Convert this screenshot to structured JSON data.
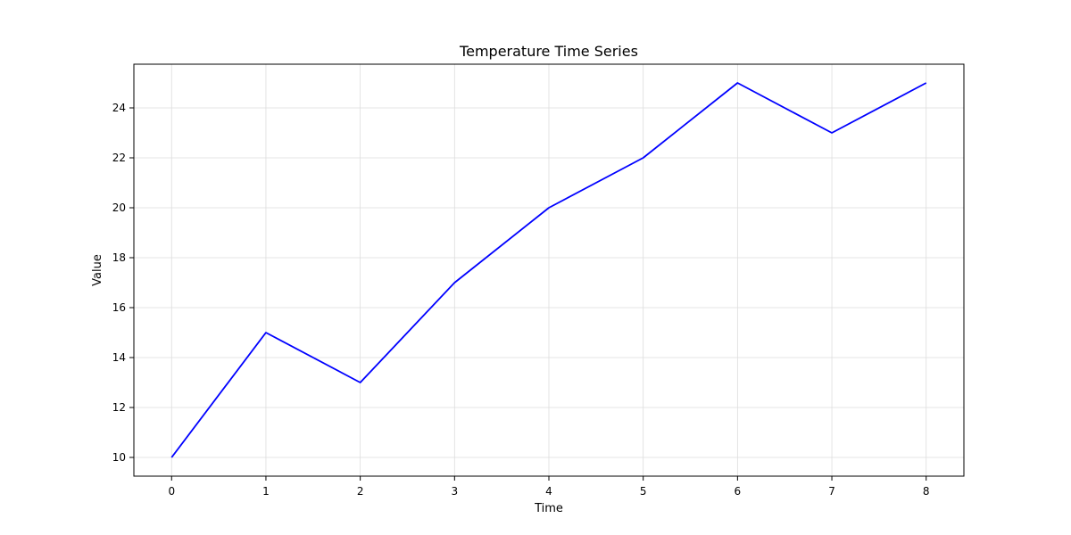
{
  "chart_data": {
    "type": "line",
    "title": "Temperature Time Series",
    "xlabel": "Time",
    "ylabel": "Value",
    "x": [
      0,
      1,
      2,
      3,
      4,
      5,
      6,
      7,
      8
    ],
    "series": [
      {
        "values": [
          10,
          15,
          13,
          17,
          20,
          22,
          25,
          23,
          25
        ],
        "color": "#0000ff"
      }
    ],
    "xlim": [
      -0.4,
      8.4
    ],
    "ylim": [
      9.25,
      25.75
    ],
    "xticks": [
      0,
      1,
      2,
      3,
      4,
      5,
      6,
      7,
      8
    ],
    "yticks": [
      10,
      12,
      14,
      16,
      18,
      20,
      22,
      24
    ],
    "grid": true
  }
}
